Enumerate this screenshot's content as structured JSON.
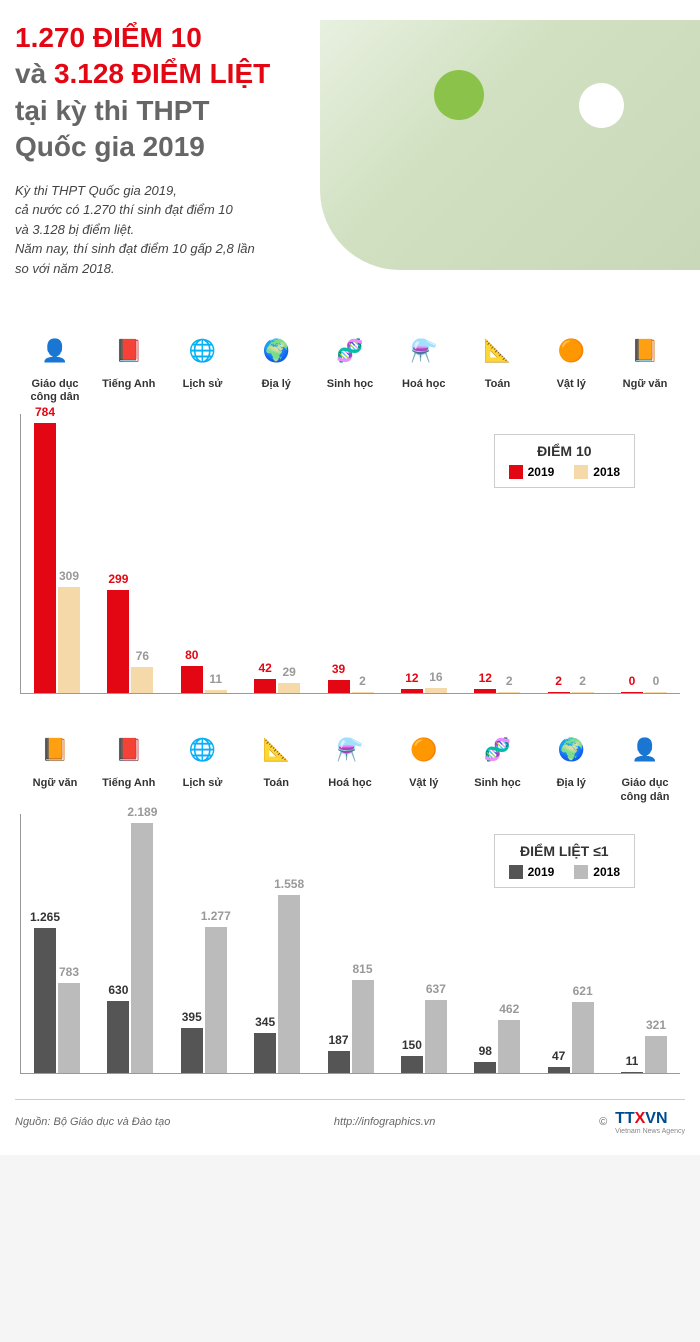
{
  "header": {
    "title_line1_red": "1.270 ĐIỂM 10",
    "title_line2_gray": "và ",
    "title_line2_red": "3.128 ĐIỂM LIỆT",
    "title_line3": "tại kỳ thi THPT",
    "title_line4": "Quốc gia 2019",
    "subtitle": "Kỳ thi THPT Quốc gia 2019,\ncả nước có 1.270 thí sinh đạt điểm 10\nvà 3.128 bị điểm liệt.\nNăm nay, thí sinh đạt điểm 10 gấp 2,8 lần\nso với năm 2018."
  },
  "chart1": {
    "legend_title": "ĐIỂM 10",
    "year1": "2019",
    "year2": "2018",
    "color_2019": "#e30613",
    "color_2018": "#f5d9a8",
    "label_color_2019": "#e30613",
    "label_color_2018": "#999",
    "max_value": 784,
    "subjects": [
      {
        "name": "Giáo dục công dân",
        "icon": "👤",
        "icon_bg": "#eee",
        "v2019": 784,
        "v2018": 309
      },
      {
        "name": "Tiếng Anh",
        "icon": "📕",
        "icon_bg": "#fff",
        "v2019": 299,
        "v2018": 76
      },
      {
        "name": "Lịch sử",
        "icon": "🌐",
        "icon_bg": "#fff",
        "v2019": 80,
        "v2018": 11
      },
      {
        "name": "Địa lý",
        "icon": "🌍",
        "icon_bg": "#fff",
        "v2019": 42,
        "v2018": 29
      },
      {
        "name": "Sinh học",
        "icon": "🧬",
        "icon_bg": "#fff",
        "v2019": 39,
        "v2018": 2
      },
      {
        "name": "Hoá học",
        "icon": "⚗️",
        "icon_bg": "#fff",
        "v2019": 12,
        "v2018": 16
      },
      {
        "name": "Toán",
        "icon": "📐",
        "icon_bg": "#fff",
        "v2019": 12,
        "v2018": 2
      },
      {
        "name": "Vật lý",
        "icon": "🟠",
        "icon_bg": "#fff",
        "v2019": 2,
        "v2018": 2
      },
      {
        "name": "Ngữ văn",
        "icon": "📙",
        "icon_bg": "#fff",
        "v2019": 0,
        "v2018": 0
      }
    ]
  },
  "chart2": {
    "legend_title": "ĐIỂM LIỆT ≤1",
    "year1": "2019",
    "year2": "2018",
    "color_2019": "#555",
    "color_2018": "#bbb",
    "label_color_2019": "#333",
    "label_color_2018": "#999",
    "max_value": 2189,
    "subjects": [
      {
        "name": "Ngữ văn",
        "icon": "📙",
        "v2019": 1265,
        "v2018": 783,
        "label_2019": "1.265"
      },
      {
        "name": "Tiếng Anh",
        "icon": "📕",
        "v2019": 630,
        "v2018": 2189,
        "label_2018": "2.189"
      },
      {
        "name": "Lịch sử",
        "icon": "🌐",
        "v2019": 395,
        "v2018": 1277,
        "label_2018": "1.277"
      },
      {
        "name": "Toán",
        "icon": "📐",
        "v2019": 345,
        "v2018": 1558,
        "label_2018": "1.558"
      },
      {
        "name": "Hoá học",
        "icon": "⚗️",
        "v2019": 187,
        "v2018": 815
      },
      {
        "name": "Vật lý",
        "icon": "🟠",
        "v2019": 150,
        "v2018": 637
      },
      {
        "name": "Sinh học",
        "icon": "🧬",
        "v2019": 98,
        "v2018": 462
      },
      {
        "name": "Địa lý",
        "icon": "🌍",
        "v2019": 47,
        "v2018": 621
      },
      {
        "name": "Giáo dục công dân",
        "icon": "👤",
        "v2019": 11,
        "v2018": 321
      }
    ]
  },
  "footer": {
    "source": "Nguồn: Bộ Giáo dục và Đào tạo",
    "url": "http://infographics.vn",
    "copyright": "©",
    "logo_tt": "TT",
    "logo_x": "X",
    "logo_vn": "VN",
    "logo_sub": "Vietnam News Agency"
  }
}
